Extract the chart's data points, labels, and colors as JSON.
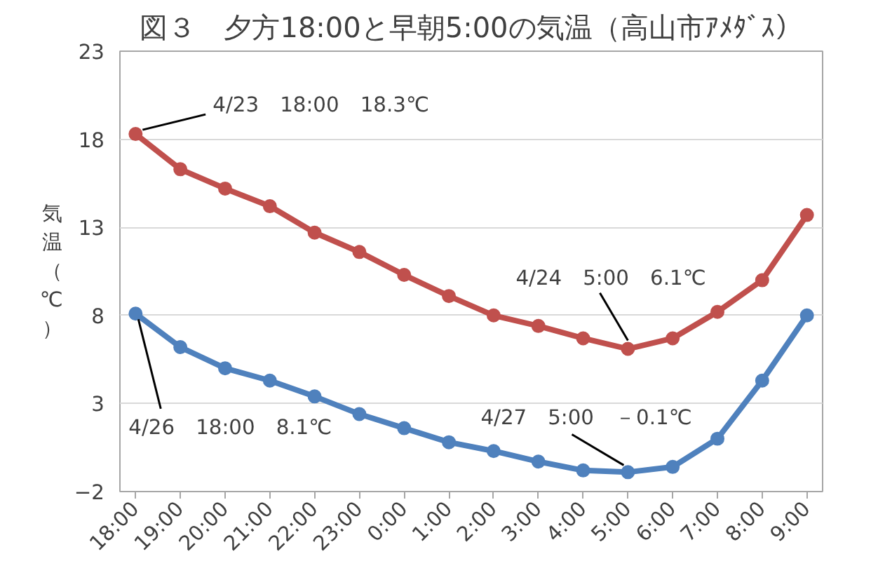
{
  "chart_data": {
    "type": "line",
    "title": "図３　夕方18:00と早朝5:00の気温（高山市ｱﾒﾀﾞｽ）",
    "ylabel": "気温（℃）",
    "categories": [
      "18:00",
      "19:00",
      "20:00",
      "21:00",
      "22:00",
      "23:00",
      "0:00",
      "1:00",
      "2:00",
      "3:00",
      "4:00",
      "5:00",
      "6:00",
      "7:00",
      "8:00",
      "9:00"
    ],
    "series": [
      {
        "color": "#c0504d",
        "values": [
          18.3,
          16.3,
          15.2,
          14.2,
          12.7,
          11.6,
          10.3,
          9.1,
          8.0,
          7.4,
          6.7,
          6.1,
          6.7,
          8.2,
          10.0,
          13.7
        ]
      },
      {
        "color": "#4f81bd",
        "values": [
          8.1,
          6.2,
          5.0,
          4.3,
          3.4,
          2.4,
          1.6,
          0.8,
          0.3,
          -0.3,
          -0.8,
          -0.9,
          -0.6,
          1.0,
          4.3,
          8.0
        ]
      }
    ],
    "ylim": [
      -2,
      23
    ],
    "yticks": [
      -2,
      3,
      8,
      13,
      18,
      23
    ],
    "grid": "y",
    "marker": "circle",
    "line_style": "solid",
    "annotations": [
      {
        "text": "4/23　18:00　18.3℃",
        "x": "18:00",
        "y": 18.3
      },
      {
        "text": "4/24　5:00　6.1℃",
        "x": "5:00",
        "y": 6.1
      },
      {
        "text": "4/26　18:00　8.1℃",
        "x": "18:00",
        "y": 8.1
      },
      {
        "text": "4/27　5:00　－0.1℃",
        "x": "5:00",
        "y": -0.9
      }
    ]
  }
}
